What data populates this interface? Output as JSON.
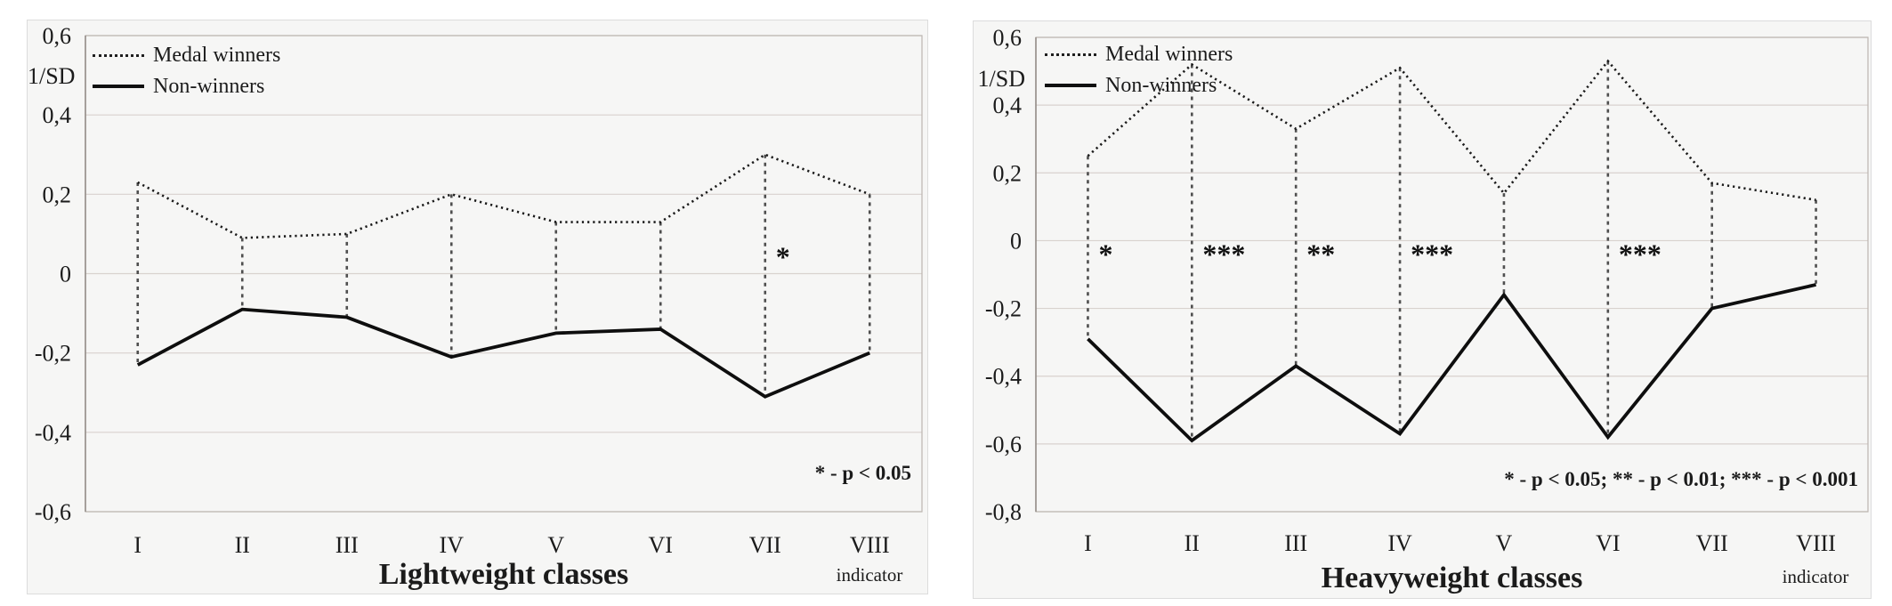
{
  "chart_data": [
    {
      "type": "line",
      "title": "Lightweight classes",
      "y_axis_unit": "1/SD",
      "x_axis_note": "indicator",
      "categories": [
        "I",
        "II",
        "III",
        "IV",
        "V",
        "VI",
        "VII",
        "VIII"
      ],
      "ylim": [
        -0.6,
        0.6
      ],
      "grid": "horizontal",
      "legend_position": "top-left",
      "yticks": [
        {
          "v": 0.6,
          "label": "0,6"
        },
        {
          "v": 0.4,
          "label": "0,4"
        },
        {
          "v": 0.2,
          "label": "0,2"
        },
        {
          "v": 0,
          "label": "0"
        },
        {
          "v": -0.2,
          "label": "-0,2"
        },
        {
          "v": -0.4,
          "label": "-0,4"
        },
        {
          "v": -0.6,
          "label": "-0,6"
        }
      ],
      "series": [
        {
          "name": "Medal winners",
          "style": "dotted",
          "values": [
            0.23,
            0.09,
            0.1,
            0.2,
            0.13,
            0.13,
            0.3,
            0.2
          ]
        },
        {
          "name": "Non-winners",
          "style": "solid",
          "values": [
            -0.23,
            -0.09,
            -0.11,
            -0.21,
            -0.15,
            -0.14,
            -0.31,
            -0.2
          ]
        }
      ],
      "droplines": true,
      "significance": [
        {
          "category": "VII",
          "stars": "*",
          "placement": "above-zero"
        }
      ],
      "annotation": "* - p < 0.05"
    },
    {
      "type": "line",
      "title": "Heavyweight classes",
      "y_axis_unit": "1/SD",
      "x_axis_note": "indicator",
      "categories": [
        "I",
        "II",
        "III",
        "IV",
        "V",
        "VI",
        "VII",
        "VIII"
      ],
      "ylim": [
        -0.8,
        0.6
      ],
      "grid": "horizontal",
      "legend_position": "top-left",
      "yticks": [
        {
          "v": 0.6,
          "label": "0,6"
        },
        {
          "v": 0.4,
          "label": "0,4"
        },
        {
          "v": 0.2,
          "label": "0,2"
        },
        {
          "v": 0,
          "label": "0"
        },
        {
          "v": -0.2,
          "label": "-0,2"
        },
        {
          "v": -0.4,
          "label": "-0,4"
        },
        {
          "v": -0.6,
          "label": "-0,6"
        },
        {
          "v": -0.8,
          "label": "-0,8"
        }
      ],
      "series": [
        {
          "name": "Medal winners",
          "style": "dotted",
          "values": [
            0.25,
            0.52,
            0.33,
            0.51,
            0.14,
            0.53,
            0.17,
            0.12
          ]
        },
        {
          "name": "Non-winners",
          "style": "solid",
          "values": [
            -0.29,
            -0.59,
            -0.37,
            -0.57,
            -0.16,
            -0.58,
            -0.2,
            -0.13
          ]
        }
      ],
      "droplines": true,
      "significance": [
        {
          "category": "I",
          "stars": "*",
          "placement": "below-zero"
        },
        {
          "category": "II",
          "stars": "***",
          "placement": "below-zero"
        },
        {
          "category": "III",
          "stars": "**",
          "placement": "below-zero"
        },
        {
          "category": "IV",
          "stars": "***",
          "placement": "below-zero"
        },
        {
          "category": "VI",
          "stars": "***",
          "placement": "below-zero"
        }
      ],
      "annotation": "* - p < 0.05; ** - p < 0.01; *** - p < 0.001"
    }
  ]
}
